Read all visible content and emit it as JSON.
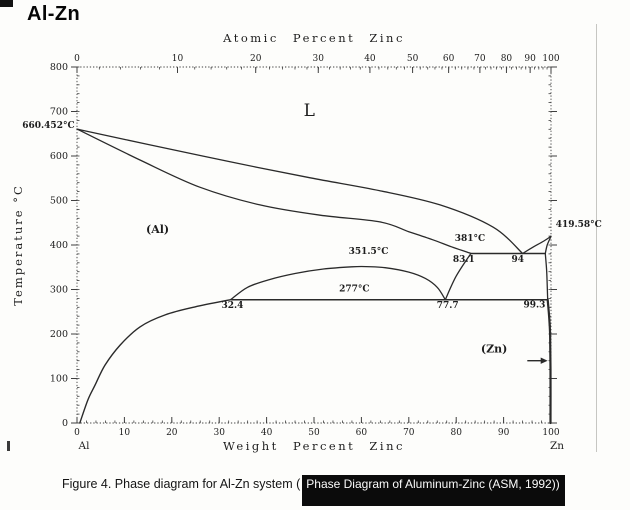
{
  "title": "Al-Zn",
  "colors": {
    "ink": "#2a2a2a",
    "frame": "#3f3f3f",
    "highlight_bg": "#0b0b0b",
    "highlight_text": "#fbfbfb",
    "scan_edge": "#c6c6c2"
  },
  "caption": {
    "prefix": "Figure 4. Phase diagram for Al-Zn system (",
    "highlight": "Phase Diagram of Aluminum-Zinc (ASM, 1992))"
  },
  "chart_data": {
    "type": "line",
    "title": "Al-Zn",
    "xlabel": "Weight Percent Zinc",
    "top_xlabel": "Atomic Percent Zinc",
    "ylabel": "Temperature °C",
    "xlim": [
      0,
      100
    ],
    "ylim": [
      0,
      800
    ],
    "grid": false,
    "x_end_labels": {
      "left": "Al",
      "right": "Zn"
    },
    "bottom_ticks": [
      0,
      10,
      20,
      30,
      40,
      50,
      60,
      70,
      80,
      90,
      100
    ],
    "left_ticks": [
      0,
      100,
      200,
      300,
      400,
      500,
      600,
      700,
      800
    ],
    "top_ticks": [
      {
        "at": "0",
        "wt": 0
      },
      {
        "at": "10",
        "wt": 21.2
      },
      {
        "at": "20",
        "wt": 37.7
      },
      {
        "at": "30",
        "wt": 50.9
      },
      {
        "at": "40",
        "wt": 61.8
      },
      {
        "at": "50",
        "wt": 70.8
      },
      {
        "at": "60",
        "wt": 78.4
      },
      {
        "at": "70",
        "wt": 85.0
      },
      {
        "at": "80",
        "wt": 90.6
      },
      {
        "at": "90",
        "wt": 95.6
      },
      {
        "at": "100",
        "wt": 100
      }
    ],
    "invariants": {
      "al_melting_C": 660.452,
      "zn_melting_C": 419.58,
      "eutectic_C": 381,
      "eutectic_compositions_wt": [
        83.1,
        94,
        98.8
      ],
      "eutectoid_C": 277,
      "eutectoid_compositions_wt": [
        32.4,
        77.7,
        99.3
      ],
      "miscibility_gap_critical_C": 351.5
    },
    "series": [
      {
        "name": "liquidus-al-side",
        "width": 1.3,
        "points": [
          [
            0,
            660.452
          ],
          [
            15.4,
            625
          ],
          [
            32.3,
            587
          ],
          [
            49.2,
            551
          ],
          [
            63.9,
            522
          ],
          [
            76.6,
            490
          ],
          [
            87.8,
            440
          ],
          [
            94,
            381
          ]
        ]
      },
      {
        "name": "solidus-al-side",
        "width": 1.3,
        "points": [
          [
            0,
            660.452
          ],
          [
            13.3,
            591
          ],
          [
            25.9,
            530
          ],
          [
            38.6,
            490
          ],
          [
            51.3,
            467
          ],
          [
            63.9,
            452
          ],
          [
            70,
            430
          ],
          [
            75,
            412
          ],
          [
            79,
            396
          ],
          [
            83.1,
            381
          ]
        ]
      },
      {
        "name": "liquidus-zn-side",
        "width": 1.3,
        "points": [
          [
            94,
            381
          ],
          [
            96.5,
            397
          ],
          [
            98.5,
            409
          ],
          [
            100,
            419.58
          ]
        ]
      },
      {
        "name": "solidus-zn-side",
        "width": 1.3,
        "points": [
          [
            100,
            419.58
          ],
          [
            99.2,
            400
          ],
          [
            98.8,
            381
          ]
        ]
      },
      {
        "name": "al-solvus-381-to-277",
        "width": 1.3,
        "points": [
          [
            83.1,
            381
          ],
          [
            80,
            330
          ],
          [
            77.7,
            277
          ]
        ]
      },
      {
        "name": "miscibility-gap-dome",
        "width": 1.3,
        "points": [
          [
            32.4,
            277
          ],
          [
            36,
            305
          ],
          [
            40.5,
            322
          ],
          [
            46,
            336
          ],
          [
            52,
            346
          ],
          [
            58,
            351
          ],
          [
            61,
            351.5
          ],
          [
            65,
            349
          ],
          [
            70,
            339
          ],
          [
            73.5,
            325
          ],
          [
            76,
            305
          ],
          [
            77.7,
            277
          ]
        ]
      },
      {
        "name": "al-solvus-low-temp",
        "width": 1.4,
        "points": [
          [
            0.6,
            0
          ],
          [
            2.3,
            52
          ],
          [
            3.8,
            85
          ],
          [
            5.9,
            130
          ],
          [
            9.1,
            175
          ],
          [
            13.3,
            216
          ],
          [
            18.6,
            243
          ],
          [
            24.9,
            261
          ],
          [
            32.4,
            277
          ]
        ]
      },
      {
        "name": "zn-solvus-381-to-277",
        "width": 1.3,
        "points": [
          [
            98.8,
            381
          ],
          [
            99.1,
            340
          ],
          [
            99.3,
            277
          ]
        ]
      },
      {
        "name": "zn-solvus-below-277",
        "width": 2.2,
        "points": [
          [
            99.3,
            277
          ],
          [
            99.6,
            240
          ],
          [
            99.8,
            200
          ],
          [
            99.9,
            120
          ],
          [
            99.9,
            0
          ]
        ]
      },
      {
        "name": "eutectic-line-381",
        "width": 1.5,
        "points": [
          [
            83.1,
            381
          ],
          [
            98.8,
            381
          ]
        ]
      },
      {
        "name": "eutectoid-line-277",
        "width": 1.5,
        "points": [
          [
            32.4,
            277
          ],
          [
            99.3,
            277
          ]
        ]
      }
    ],
    "annotations": [
      {
        "text": "L",
        "wt": 49,
        "T": 690,
        "size": 17,
        "bold": false,
        "anchor": "middle"
      },
      {
        "text": "(Al)",
        "wt": 17,
        "T": 427,
        "size": 11,
        "bold": true,
        "anchor": "middle"
      },
      {
        "text": "(Zn)",
        "wt": 88,
        "T": 158,
        "size": 11,
        "bold": true,
        "anchor": "middle"
      },
      {
        "text": "660.452°C",
        "wt": -0.5,
        "T": 663,
        "size": 9,
        "bold": true,
        "anchor": "end"
      },
      {
        "text": "419.58°C",
        "wt": 101,
        "T": 440,
        "size": 9,
        "bold": true,
        "anchor": "start"
      },
      {
        "text": "381°C",
        "wt": 82.9,
        "T": 409,
        "size": 9,
        "bold": true,
        "anchor": "middle"
      },
      {
        "text": "83.1",
        "wt": 81.6,
        "T": 362,
        "size": 9,
        "bold": true,
        "anchor": "middle"
      },
      {
        "text": "94",
        "wt": 93,
        "T": 362,
        "size": 9,
        "bold": true,
        "anchor": "middle"
      },
      {
        "text": "351.5°C",
        "wt": 61.5,
        "T": 380,
        "size": 9,
        "bold": true,
        "anchor": "middle"
      },
      {
        "text": "277°C",
        "wt": 58.5,
        "T": 295,
        "size": 9,
        "bold": true,
        "anchor": "middle"
      },
      {
        "text": "32.4",
        "wt": 32.8,
        "T": 258,
        "size": 9,
        "bold": true,
        "anchor": "middle"
      },
      {
        "text": "77.7",
        "wt": 78.2,
        "T": 258,
        "size": 9,
        "bold": true,
        "anchor": "middle"
      },
      {
        "text": "99.3",
        "wt": 96.5,
        "T": 260,
        "size": 9,
        "bold": true,
        "anchor": "middle"
      }
    ],
    "zn_arrow": {
      "from_wt": 95,
      "to_wt": 99.3,
      "T": 140
    }
  }
}
